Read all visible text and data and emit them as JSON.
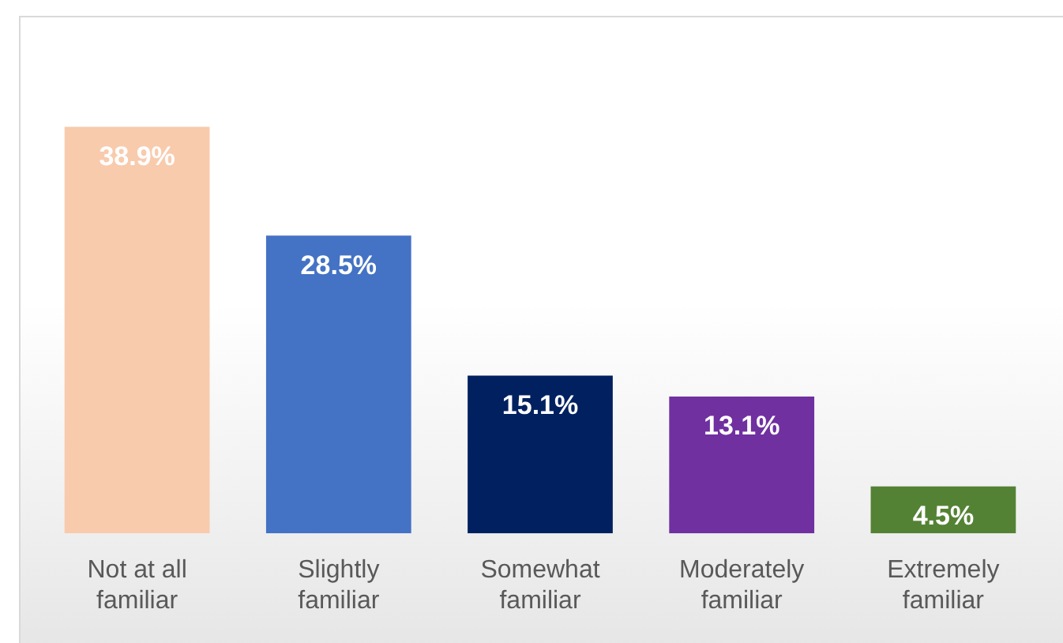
{
  "chart_data": {
    "type": "bar",
    "categories": [
      "Not at all familiar",
      "Slightly familiar",
      "Somewhat familiar",
      "Moderately familiar",
      "Extremely familiar"
    ],
    "values": [
      38.9,
      28.5,
      15.1,
      13.1,
      4.5
    ],
    "colors": [
      "#f8cbad",
      "#4472c4",
      "#002060",
      "#7030a0",
      "#548235"
    ],
    "value_labels": [
      "38.9%",
      "28.5%",
      "15.1%",
      "13.1%",
      "4.5%"
    ],
    "grid": false,
    "legend": false
  }
}
